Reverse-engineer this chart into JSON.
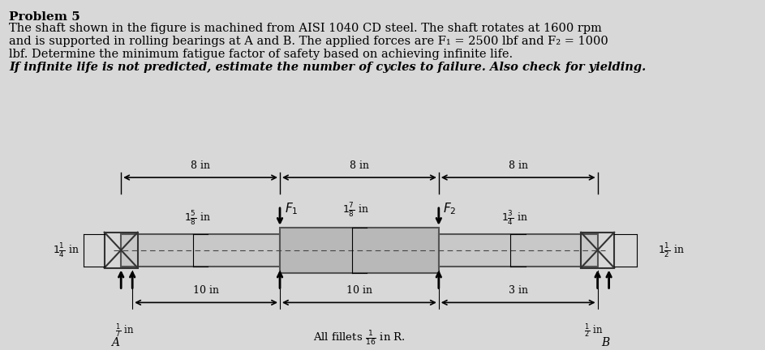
{
  "bg_color": "#d8d8d8",
  "text_color": "#000000",
  "title_line": "Problem 5",
  "body_lines": [
    "The shaft shown in the figure is machined from AISI 1040 CD steel. The shaft rotates at 1600 rpm",
    "and is supported in rolling bearings at A and B. The applied forces are F₁ = 2500 lbf and F₂ = 1000",
    "lbf. Determine the minimum fatigue factor of safety based on achieving infinite life.",
    "If infinite life is not predicted, estimate the number of cycles to failure. Also check for yielding."
  ],
  "shaft_color": "#aaaaaa",
  "shaft_dark": "#555555",
  "dim_color": "#000000",
  "fig_width": 9.43,
  "fig_height": 4.32
}
